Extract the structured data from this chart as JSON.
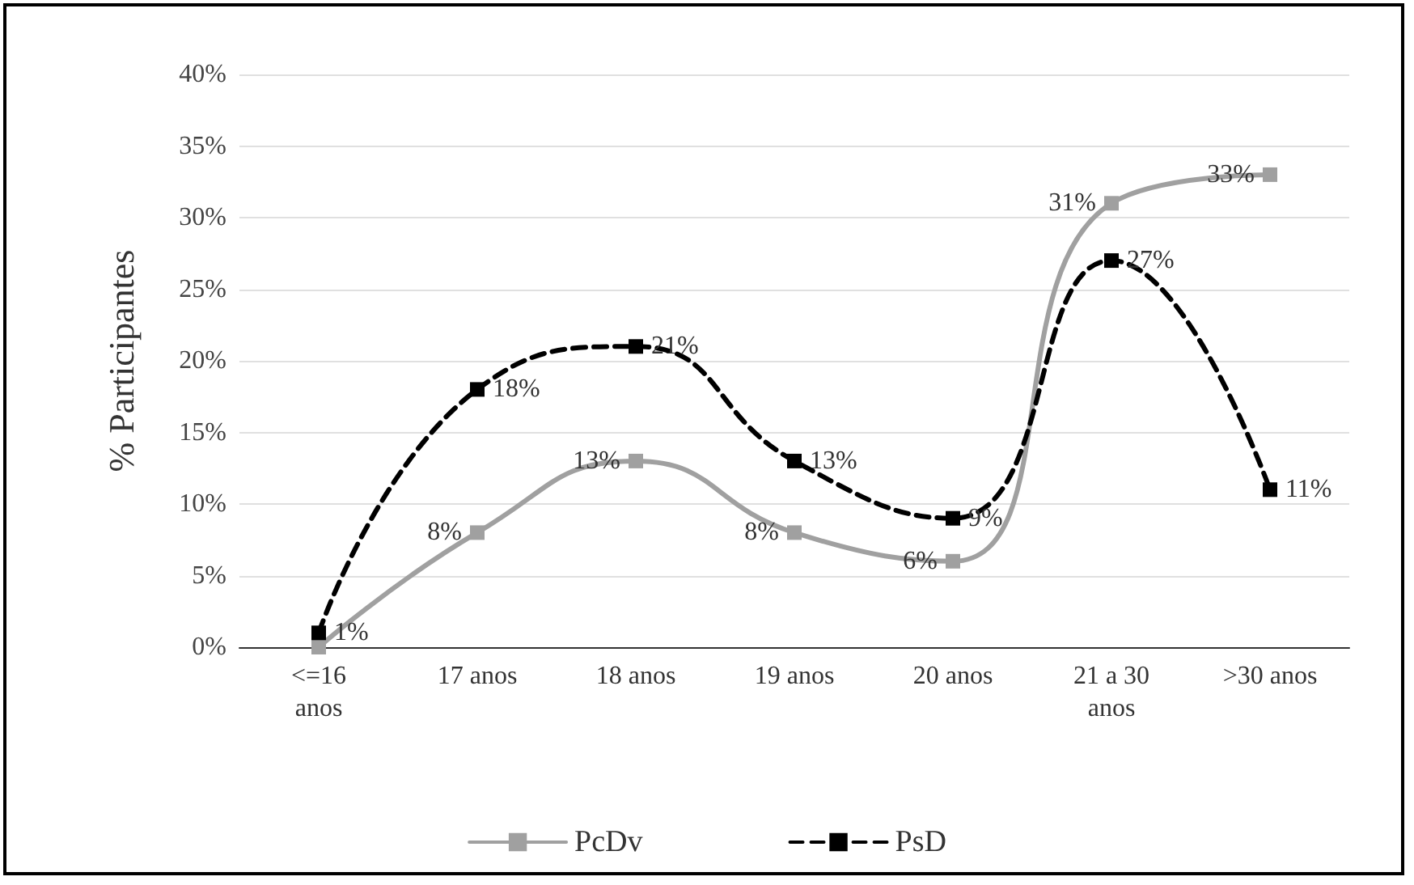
{
  "chart_data": {
    "type": "line",
    "ylabel": "% Participantes",
    "categories": [
      "<=16\nanos",
      "17 anos",
      "18 anos",
      "19 anos",
      "20 anos",
      "21 a 30\nanos",
      ">30 anos"
    ],
    "series": [
      {
        "name": "PcDv",
        "color": "#a0a0a0",
        "line_style": "solid",
        "values": [
          0,
          8,
          13,
          8,
          6,
          31,
          33
        ],
        "value_labels": [
          null,
          "8%",
          "13%",
          "8%",
          "6%",
          "31%",
          "33%"
        ]
      },
      {
        "name": "PsD",
        "color": "#000000",
        "line_style": "dashed",
        "values": [
          1,
          18,
          21,
          13,
          9,
          27,
          11
        ],
        "value_labels": [
          "1%",
          "18%",
          "21%",
          "13%",
          "9%",
          "27%",
          "11%"
        ]
      }
    ],
    "ylim": [
      0,
      40
    ],
    "yticks": [
      {
        "value": 0,
        "label": "0%"
      },
      {
        "value": 5,
        "label": "5%"
      },
      {
        "value": 10,
        "label": "10%"
      },
      {
        "value": 15,
        "label": "15%"
      },
      {
        "value": 20,
        "label": "20%"
      },
      {
        "value": 25,
        "label": "25%"
      },
      {
        "value": 30,
        "label": "30%"
      },
      {
        "value": 35,
        "label": "35%"
      },
      {
        "value": 40,
        "label": "40%"
      }
    ],
    "grid": "y",
    "legend": "bottom",
    "marker": "square"
  }
}
